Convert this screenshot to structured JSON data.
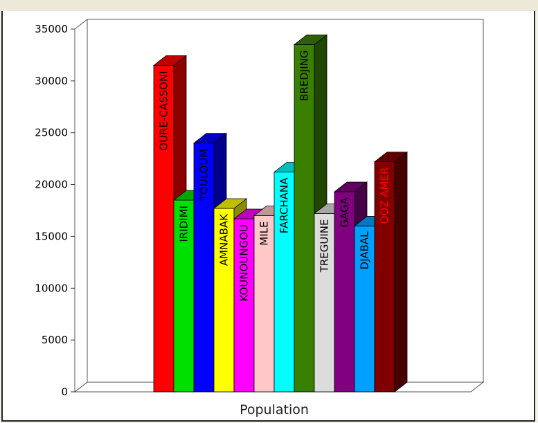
{
  "chart_data": {
    "type": "bar",
    "style": "3d",
    "xlabel": "Population",
    "ylabel": "",
    "ylim": [
      0,
      35000
    ],
    "yticks": [
      0,
      5000,
      10000,
      15000,
      20000,
      25000,
      30000,
      35000
    ],
    "grid": false,
    "legend": "none",
    "series": [
      {
        "name": "OURE-CASSONI",
        "value": 31500,
        "color": "#ff0000",
        "label_color": "#000000"
      },
      {
        "name": "IRIDIMI",
        "value": 18500,
        "color": "#00e000",
        "label_color": "#000000"
      },
      {
        "name": "TOULOUM",
        "value": 24000,
        "color": "#0000ff",
        "label_color": "#000000"
      },
      {
        "name": "AMNABAK",
        "value": 17700,
        "color": "#ffff00",
        "label_color": "#000000"
      },
      {
        "name": "KOUNOUNGOU",
        "value": 16700,
        "color": "#ff00ff",
        "label_color": "#000000"
      },
      {
        "name": "MILE",
        "value": 17000,
        "color": "#ffc8c8",
        "label_color": "#000000"
      },
      {
        "name": "FARCHANA",
        "value": 21200,
        "color": "#00ffff",
        "label_color": "#000000"
      },
      {
        "name": "BREDJING",
        "value": 33500,
        "color": "#3a8000",
        "label_color": "#000000"
      },
      {
        "name": "TREGUINE",
        "value": 17200,
        "color": "#dcdcdc",
        "label_color": "#000000"
      },
      {
        "name": "GAGA",
        "value": 19300,
        "color": "#800080",
        "label_color": "#000000"
      },
      {
        "name": "DJABAL",
        "value": 16000,
        "color": "#00a0ff",
        "label_color": "#000000"
      },
      {
        "name": "OOZ AMER",
        "value": 22200,
        "color": "#800000",
        "label_color": "#ff0000"
      }
    ]
  }
}
